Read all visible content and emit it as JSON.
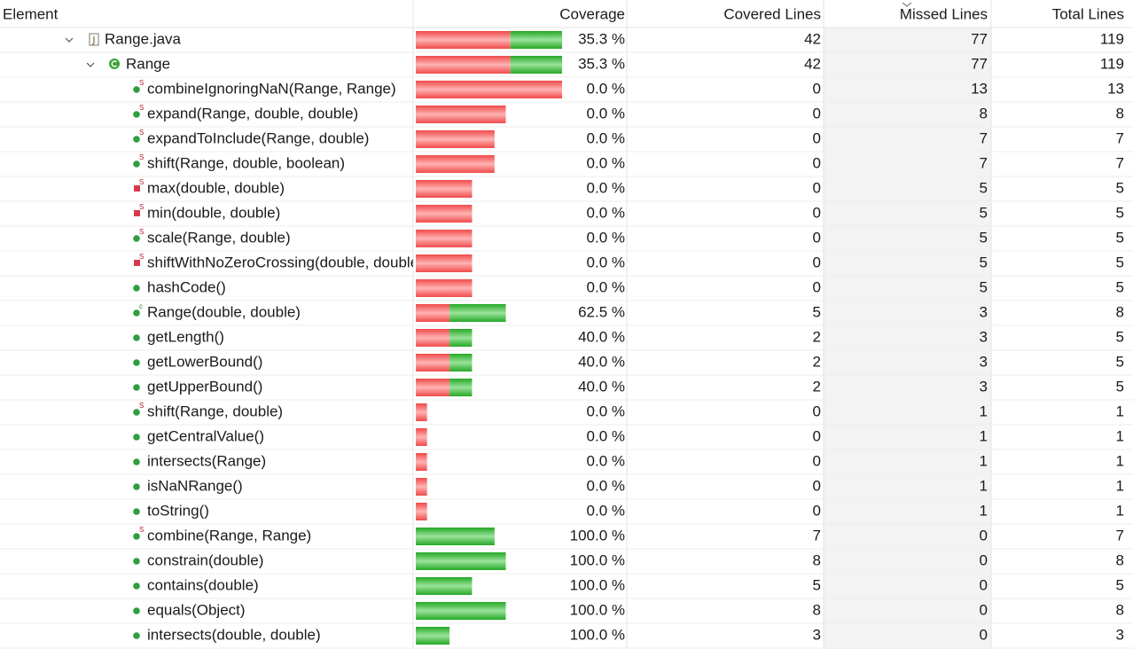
{
  "table": {
    "columns": [
      "Element",
      "Coverage",
      "Covered Lines",
      "Missed Lines",
      "Total Lines"
    ],
    "rows": [
      {
        "element": "Range.java",
        "coverage": "35.3 %",
        "covered_lines": 42,
        "missed_lines": 77,
        "total_lines": 119
      },
      {
        "element": "Range",
        "coverage": "35.3 %",
        "covered_lines": 42,
        "missed_lines": 77,
        "total_lines": 119
      },
      {
        "element": "combineIgnoringNaN(Range, Range)",
        "coverage": "0.0 %",
        "covered_lines": 0,
        "missed_lines": 13,
        "total_lines": 13
      },
      {
        "element": "expand(Range, double, double)",
        "coverage": "0.0 %",
        "covered_lines": 0,
        "missed_lines": 8,
        "total_lines": 8
      },
      {
        "element": "expandToInclude(Range, double)",
        "coverage": "0.0 %",
        "covered_lines": 0,
        "missed_lines": 7,
        "total_lines": 7
      },
      {
        "element": "shift(Range, double, boolean)",
        "coverage": "0.0 %",
        "covered_lines": 0,
        "missed_lines": 7,
        "total_lines": 7
      },
      {
        "element": "max(double, double)",
        "coverage": "0.0 %",
        "covered_lines": 0,
        "missed_lines": 5,
        "total_lines": 5
      },
      {
        "element": "min(double, double)",
        "coverage": "0.0 %",
        "covered_lines": 0,
        "missed_lines": 5,
        "total_lines": 5
      },
      {
        "element": "scale(Range, double)",
        "coverage": "0.0 %",
        "covered_lines": 0,
        "missed_lines": 5,
        "total_lines": 5
      },
      {
        "element": "shiftWithNoZeroCrossing(double, double)",
        "coverage": "0.0 %",
        "covered_lines": 0,
        "missed_lines": 5,
        "total_lines": 5
      },
      {
        "element": "hashCode()",
        "coverage": "0.0 %",
        "covered_lines": 0,
        "missed_lines": 5,
        "total_lines": 5
      },
      {
        "element": "Range(double, double)",
        "coverage": "62.5 %",
        "covered_lines": 5,
        "missed_lines": 3,
        "total_lines": 8
      },
      {
        "element": "getLength()",
        "coverage": "40.0 %",
        "covered_lines": 2,
        "missed_lines": 3,
        "total_lines": 5
      },
      {
        "element": "getLowerBound()",
        "coverage": "40.0 %",
        "covered_lines": 2,
        "missed_lines": 3,
        "total_lines": 5
      },
      {
        "element": "getUpperBound()",
        "coverage": "40.0 %",
        "covered_lines": 2,
        "missed_lines": 3,
        "total_lines": 5
      },
      {
        "element": "shift(Range, double)",
        "coverage": "0.0 %",
        "covered_lines": 0,
        "missed_lines": 1,
        "total_lines": 1
      },
      {
        "element": "getCentralValue()",
        "coverage": "0.0 %",
        "covered_lines": 0,
        "missed_lines": 1,
        "total_lines": 1
      },
      {
        "element": "intersects(Range)",
        "coverage": "0.0 %",
        "covered_lines": 0,
        "missed_lines": 1,
        "total_lines": 1
      },
      {
        "element": "isNaNRange()",
        "coverage": "0.0 %",
        "covered_lines": 0,
        "missed_lines": 1,
        "total_lines": 1
      },
      {
        "element": "toString()",
        "coverage": "0.0 %",
        "covered_lines": 0,
        "missed_lines": 1,
        "total_lines": 1
      },
      {
        "element": "combine(Range, Range)",
        "coverage": "100.0 %",
        "covered_lines": 7,
        "missed_lines": 0,
        "total_lines": 7
      },
      {
        "element": "constrain(double)",
        "coverage": "100.0 %",
        "covered_lines": 8,
        "missed_lines": 0,
        "total_lines": 8
      },
      {
        "element": "contains(double)",
        "coverage": "100.0 %",
        "covered_lines": 5,
        "missed_lines": 0,
        "total_lines": 5
      },
      {
        "element": "equals(Object)",
        "coverage": "100.0 %",
        "covered_lines": 8,
        "missed_lines": 0,
        "total_lines": 8
      },
      {
        "element": "intersects(double, double)",
        "coverage": "100.0 %",
        "covered_lines": 3,
        "missed_lines": 0,
        "total_lines": 3
      }
    ]
  }
}
